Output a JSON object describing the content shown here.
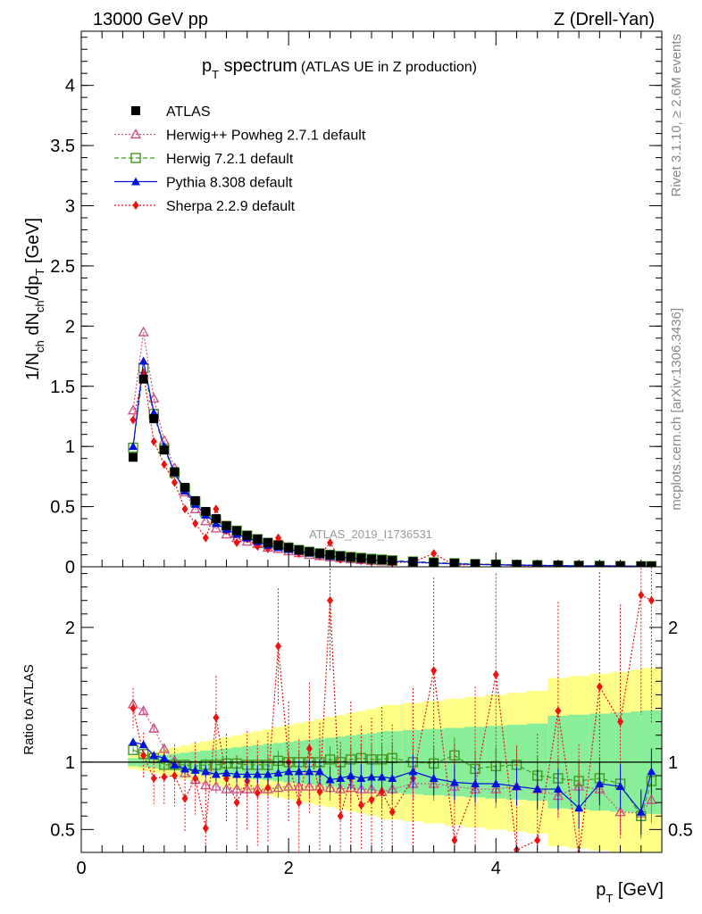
{
  "header": {
    "left": "13000 GeV pp",
    "right": "Z (Drell-Yan)"
  },
  "side_labels": {
    "rivet": "Rivet 3.1.10, ≥ 2.6M events",
    "mcplots": "mcplots.cern.ch [arXiv:1306.3436]"
  },
  "watermark": "ATLAS_2019_I1736531",
  "title": {
    "main": "p",
    "main_sub": "T",
    "main_rest": " spectrum",
    "sub": "(ATLAS UE in Z production)"
  },
  "colors": {
    "atlas": "#000000",
    "herwigpp": "#cc5588",
    "herwig7": "#449922",
    "pythia": "#0011dd",
    "sherpa": "#ee1111",
    "band_outer": "#ffff88",
    "band_inner": "#88ee99"
  },
  "chart_data": {
    "type": "scatter",
    "x": [
      0.5,
      0.6,
      0.7,
      0.8,
      0.9,
      1.0,
      1.1,
      1.2,
      1.3,
      1.4,
      1.5,
      1.6,
      1.7,
      1.8,
      1.9,
      2.0,
      2.1,
      2.2,
      2.3,
      2.4,
      2.5,
      2.6,
      2.7,
      2.8,
      2.9,
      3.0,
      3.2,
      3.4,
      3.6,
      3.8,
      4.0,
      4.2,
      4.4,
      4.6,
      4.8,
      5.0,
      5.2,
      5.4,
      5.5
    ],
    "main": {
      "ylabel": "1/N_ch dN_ch/dp_T [GeV]",
      "ylim": [
        0,
        4.45
      ],
      "yticks": [
        0,
        0.5,
        1,
        1.5,
        2,
        2.5,
        3,
        3.5,
        4
      ],
      "ytick_labels": [
        "0",
        "0.5",
        "1",
        "1.5",
        "2",
        "2.5",
        "3",
        "3.5",
        "4"
      ]
    },
    "ratio": {
      "ylabel": "Ratio to ATLAS",
      "ylim": [
        0.33,
        2.45
      ],
      "yticks": [
        0.5,
        1,
        2
      ],
      "ytick_labels": [
        "0.5",
        "1",
        "2"
      ]
    },
    "xaxis": {
      "xlabel": "p_T [GeV]",
      "xlim": [
        0,
        5.6
      ],
      "xticks": [
        0,
        2,
        4
      ],
      "xtick_labels": [
        "0",
        "2",
        "4"
      ]
    },
    "legend": {
      "position": "top-left",
      "entries": [
        "ATLAS",
        "Herwig++ Powheg 2.7.1 default",
        "Herwig 7.2.1 default",
        "Pythia 8.308 default",
        "Sherpa 2.2.9 default"
      ]
    },
    "series": [
      {
        "name": "ATLAS",
        "key": "atlas",
        "marker": "square-filled",
        "values": [
          0.91,
          1.56,
          1.23,
          0.97,
          0.79,
          0.66,
          0.55,
          0.46,
          0.4,
          0.34,
          0.3,
          0.26,
          0.23,
          0.2,
          0.18,
          0.16,
          0.14,
          0.125,
          0.112,
          0.1,
          0.09,
          0.08,
          0.072,
          0.064,
          0.058,
          0.052,
          0.043,
          0.035,
          0.029,
          0.024,
          0.02,
          0.017,
          0.014,
          0.012,
          0.01,
          0.009,
          0.008,
          0.007,
          0.006
        ],
        "ratio": [
          1,
          1,
          1,
          1,
          1,
          1,
          1,
          1,
          1,
          1,
          1,
          1,
          1,
          1,
          1,
          1,
          1,
          1,
          1,
          1,
          1,
          1,
          1,
          1,
          1,
          1,
          1,
          1,
          1,
          1,
          1,
          1,
          1,
          1,
          1,
          1,
          1,
          1,
          1
        ]
      },
      {
        "name": "Herwig++ Powheg 2.7.1 default",
        "key": "herwigpp",
        "marker": "triangle-open",
        "values": [
          1.3,
          1.95,
          1.4,
          1.05,
          0.82,
          0.62,
          0.48,
          0.38,
          0.32,
          0.27,
          0.24,
          0.21,
          0.19,
          0.16,
          0.15,
          0.13,
          0.115,
          0.1,
          0.09,
          0.08,
          0.072,
          0.064,
          0.058,
          0.051,
          0.046,
          0.042,
          0.035,
          0.029,
          0.024,
          0.019,
          0.016,
          0.014,
          0.011,
          0.009,
          0.008,
          0.007,
          0.0055,
          0.0045,
          0.0042
        ],
        "ratio": [
          1.43,
          1.38,
          1.25,
          1.1,
          1.01,
          0.92,
          0.87,
          0.83,
          0.82,
          0.8,
          0.8,
          0.8,
          0.8,
          0.8,
          0.81,
          0.82,
          0.82,
          0.82,
          0.82,
          0.81,
          0.8,
          0.81,
          0.8,
          0.8,
          0.78,
          0.8,
          0.84,
          0.84,
          0.82,
          0.8,
          0.8,
          0.82,
          0.8,
          0.75,
          0.82,
          0.8,
          0.63,
          0.62,
          0.72
        ]
      },
      {
        "name": "Herwig 7.2.1 default",
        "key": "herwig7",
        "marker": "square-open",
        "values": [
          0.99,
          1.65,
          1.27,
          0.98,
          0.78,
          0.65,
          0.54,
          0.45,
          0.39,
          0.34,
          0.3,
          0.26,
          0.23,
          0.2,
          0.18,
          0.16,
          0.14,
          0.125,
          0.112,
          0.1,
          0.09,
          0.082,
          0.075,
          0.066,
          0.06,
          0.054,
          0.044,
          0.036,
          0.03,
          0.023,
          0.019,
          0.017,
          0.013,
          0.011,
          0.009,
          0.008,
          0.0065,
          0.0045,
          0.005
        ],
        "ratio": [
          1.09,
          1.06,
          1.03,
          0.98,
          0.98,
          0.98,
          0.97,
          0.98,
          0.98,
          0.99,
          0.99,
          0.98,
          0.98,
          0.98,
          1.01,
          1.0,
          1.0,
          1.0,
          1.0,
          1.02,
          1.0,
          1.02,
          1.03,
          1.02,
          1.02,
          1.03,
          1.0,
          0.99,
          1.05,
          0.95,
          0.97,
          0.98,
          0.9,
          0.88,
          0.86,
          0.88,
          0.84,
          0.6,
          0.86
        ]
      },
      {
        "name": "Pythia 8.308 default",
        "key": "pythia",
        "marker": "triangle-filled",
        "values": [
          1.0,
          1.71,
          1.28,
          1.0,
          0.78,
          0.63,
          0.52,
          0.43,
          0.36,
          0.31,
          0.27,
          0.24,
          0.21,
          0.18,
          0.16,
          0.145,
          0.13,
          0.115,
          0.1,
          0.087,
          0.08,
          0.072,
          0.063,
          0.057,
          0.052,
          0.046,
          0.04,
          0.031,
          0.025,
          0.02,
          0.017,
          0.014,
          0.011,
          0.0095,
          0.007,
          0.0075,
          0.0065,
          0.0045,
          0.0055
        ],
        "ratio": [
          1.15,
          1.13,
          1.05,
          1.03,
          0.98,
          0.95,
          0.94,
          0.93,
          0.91,
          0.92,
          0.91,
          0.91,
          0.91,
          0.91,
          0.92,
          0.93,
          0.93,
          0.93,
          0.93,
          0.87,
          0.88,
          0.9,
          0.88,
          0.89,
          0.89,
          0.88,
          0.93,
          0.88,
          0.85,
          0.84,
          0.84,
          0.82,
          0.8,
          0.8,
          0.66,
          0.84,
          0.82,
          0.63,
          0.93
        ]
      },
      {
        "name": "Sherpa 2.2.9 default",
        "key": "sherpa",
        "marker": "diamond-filled",
        "values": [
          1.22,
          1.61,
          1.04,
          0.85,
          0.7,
          0.48,
          0.36,
          0.24,
          0.48,
          0.3,
          0.2,
          0.23,
          0.17,
          0.15,
          0.24,
          0.17,
          0.11,
          0.12,
          0.09,
          0.2,
          0.06,
          0.09,
          0.05,
          0.045,
          0.055,
          0.035,
          0.04,
          0.11,
          0.012,
          0.02,
          0.02,
          0.006,
          0.006,
          0.01,
          0.003,
          0.012,
          0.007,
          0.004,
          0.002
        ],
        "ratio": [
          1.4,
          1.05,
          0.88,
          0.89,
          0.9,
          0.73,
          0.88,
          0.51,
          1.33,
          0.88,
          0.7,
          0.86,
          0.77,
          0.81,
          1.86,
          1.0,
          0.7,
          1.1,
          0.78,
          2.2,
          0.6,
          0.88,
          0.68,
          0.72,
          0.78,
          0.63,
          0.88,
          1.68,
          0.42,
          0.83,
          1.65,
          0.35,
          0.42,
          1.38,
          0.3,
          1.56,
          1.3,
          2.24,
          2.2
        ]
      }
    ]
  }
}
